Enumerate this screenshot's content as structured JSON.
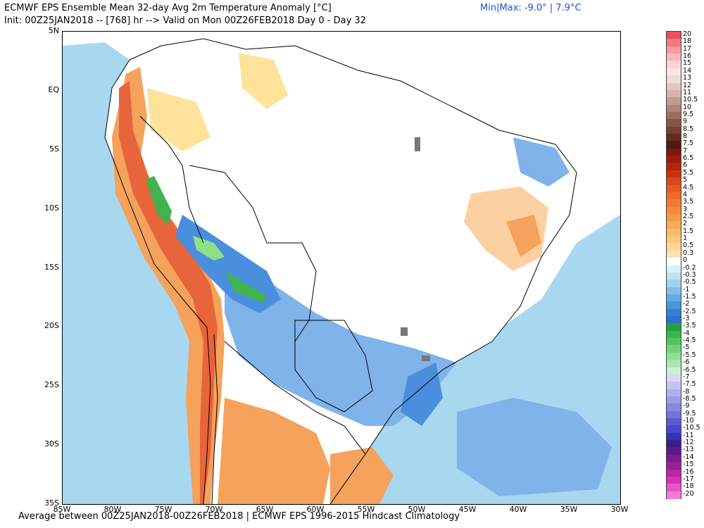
{
  "header": {
    "title": "ECMWF EPS Ensemble Mean 32-day Avg 2m Temperature Anomaly [°C]",
    "init": "Init: 00Z25JAN2018 -- [768] hr --> Valid on Mon 00Z26FEB2018  Day 0 - Day 32",
    "minmax": "Min|Max: -9.0° | 7.9°C"
  },
  "footer": "Average between 00Z25JAN2018-00Z26FEB2018 | ECMWF EPS 1996-2015 Hindcast Climatology",
  "map": {
    "lat_labels": [
      "5N",
      "EQ",
      "5S",
      "10S",
      "15S",
      "20S",
      "25S",
      "30S",
      "35S"
    ],
    "lon_labels": [
      "85W",
      "80W",
      "75W",
      "70W",
      "65W",
      "60W",
      "55W",
      "50W",
      "45W",
      "40W",
      "35W",
      "30W"
    ],
    "colors": {
      "orange": "#f4a25c",
      "red_orange": "#e8643a",
      "light_orange": "#fdd0a2",
      "pale_yellow": "#ffe39a",
      "light_blue": "#a8d8f0",
      "medium_blue": "#7fb3ea",
      "blue": "#4a8ede",
      "dark_blue": "#2c6fd0",
      "green": "#3fb44c",
      "light_green": "#8be089"
    }
  },
  "colorbar": {
    "labels": [
      "20",
      "18",
      "17",
      "16",
      "15",
      "14",
      "13",
      "12",
      "11",
      "10.5",
      "10",
      "9.5",
      "9",
      "8.5",
      "8",
      "7.5",
      "7",
      "6.5",
      "6",
      "5.5",
      "5",
      "4.5",
      "4",
      "3.5",
      "3",
      "2.5",
      "2",
      "1.5",
      "1",
      "0.5",
      "0.3",
      "0",
      "-0.2",
      "-0.3",
      "-0.5",
      "-1",
      "-1.5",
      "-2",
      "-2.5",
      "-3",
      "-3.5",
      "-4",
      "-4.5",
      "-5",
      "-5.5",
      "-6",
      "-6.5",
      "-7",
      "-7.5",
      "-8",
      "-8.5",
      "-9",
      "-9.5",
      "-10",
      "-10.5",
      "-11",
      "-12",
      "-13",
      "-14",
      "-15",
      "-16",
      "-17",
      "-18",
      "-20"
    ],
    "colors": [
      "#e8505a",
      "#ef7a80",
      "#f39ba0",
      "#f7b9bc",
      "#fad3d4",
      "#fbe5e5",
      "#f0dcd6",
      "#e2c8c0",
      "#d4b4aa",
      "#c39c90",
      "#b08478",
      "#9c6c60",
      "#885448",
      "#744034",
      "#602c22",
      "#4c1c12",
      "#7a1a0a",
      "#961e0a",
      "#b2260c",
      "#c83410",
      "#d84a1a",
      "#e45c22",
      "#ec6c2a",
      "#f07c32",
      "#f48a3a",
      "#f69a48",
      "#f8aa58",
      "#faba6a",
      "#fcc87c",
      "#fdd690",
      "#fee4aa",
      "#ffffff",
      "#d8f0fa",
      "#bde3f4",
      "#9fd2ee",
      "#82bfe8",
      "#64a9e2",
      "#4a94dc",
      "#3480d6",
      "#2c6fd0",
      "#24a040",
      "#3cb44c",
      "#56c462",
      "#72d27c",
      "#8edc96",
      "#aae6b0",
      "#c8f0cc",
      "#d8d8f4",
      "#c4c4ee",
      "#b0b0e8",
      "#9c9ce2",
      "#8888dc",
      "#7474d6",
      "#5c5cd0",
      "#4848c6",
      "#3434b8",
      "#3a1e8a",
      "#5a1a8c",
      "#7a1c90",
      "#9a1e98",
      "#ba26a6",
      "#d432b8",
      "#e654c8",
      "#f07ad8"
    ]
  }
}
